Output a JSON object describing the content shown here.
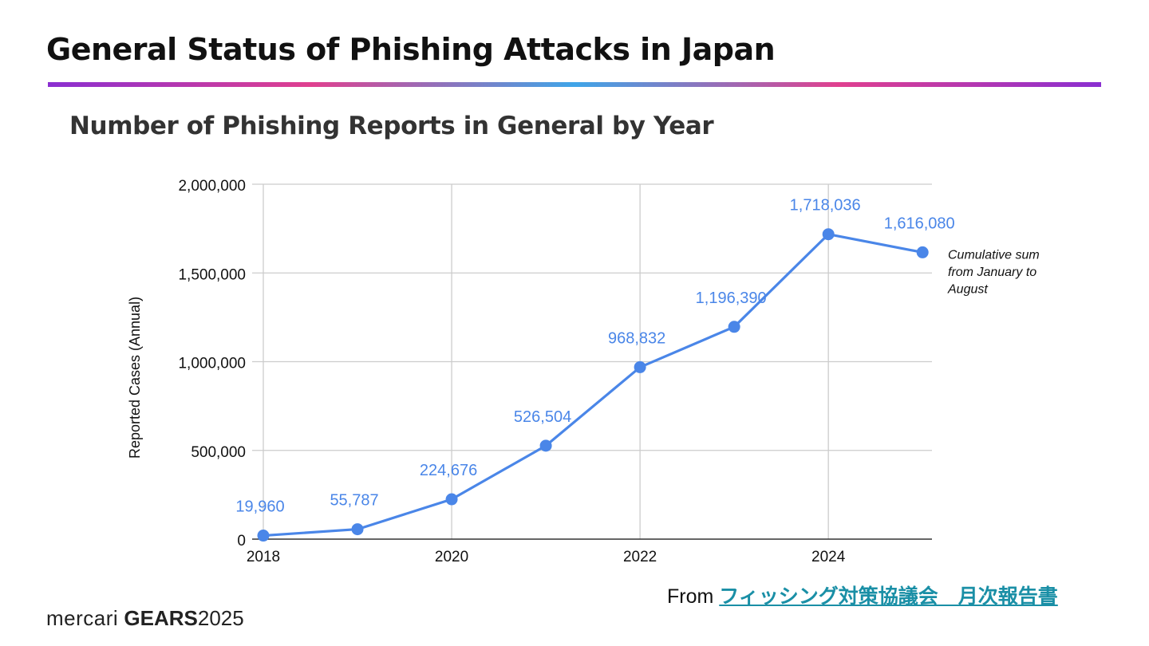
{
  "page": {
    "title": "General Status of Phishing Attacks in Japan",
    "chart_heading": "Number of Phishing Reports in General by Year",
    "source_prefix": "From ",
    "source_link": "フィッシング対策協議会　月次報告書 ",
    "brand_part1": "mercari",
    "brand_part2": "GEARS",
    "brand_part3": "2025",
    "accent_colors": [
      "#8a2fd1",
      "#e0408f",
      "#3fa5e8"
    ]
  },
  "chart_data": {
    "type": "line",
    "title": "",
    "xlabel": "",
    "ylabel": "Reported Cases (Annual)",
    "x": [
      2018,
      2019,
      2020,
      2021,
      2022,
      2023,
      2024,
      2025
    ],
    "x_tick_labels": [
      "2018",
      "2020",
      "2022",
      "2024"
    ],
    "x_tick_values": [
      2018,
      2020,
      2022,
      2024
    ],
    "y_tick_labels": [
      "0",
      "500,000",
      "1,000,000",
      "1,500,000",
      "2,000,000"
    ],
    "y_tick_values": [
      0,
      500000,
      1000000,
      1500000,
      2000000
    ],
    "ylim": [
      0,
      2000000
    ],
    "xlim": [
      2018,
      2025.1
    ],
    "grid": true,
    "legend": "none",
    "series": [
      {
        "color": "#4a86e8",
        "values": [
          19960,
          55787,
          224676,
          526504,
          968832,
          1196390,
          1718036,
          1616080
        ],
        "data_labels": [
          "19,960",
          "55,787",
          "224,676",
          "526,504",
          "968,832",
          "1,196,390",
          "1,718,036",
          "1,616,080"
        ]
      }
    ],
    "annotations": [
      "Cumulative sum",
      "from January to",
      "August"
    ]
  }
}
